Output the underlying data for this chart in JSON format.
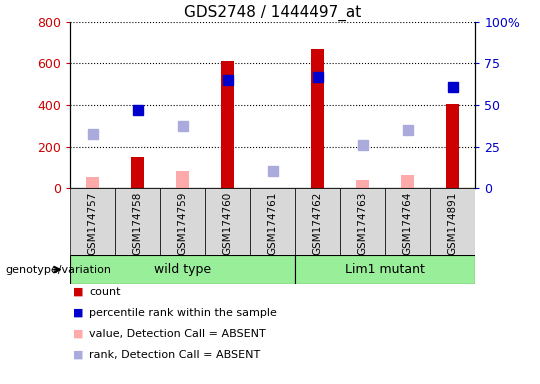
{
  "title": "GDS2748 / 1444497_at",
  "samples": [
    "GSM174757",
    "GSM174758",
    "GSM174759",
    "GSM174760",
    "GSM174761",
    "GSM174762",
    "GSM174763",
    "GSM174764",
    "GSM174891"
  ],
  "count_values": [
    null,
    150,
    null,
    610,
    null,
    670,
    null,
    null,
    405
  ],
  "count_absent_values": [
    55,
    null,
    80,
    null,
    null,
    null,
    38,
    65,
    null
  ],
  "percentile_values": [
    null,
    375,
    null,
    520,
    null,
    535,
    null,
    null,
    485
  ],
  "percentile_absent_values": [
    260,
    null,
    300,
    null,
    80,
    null,
    205,
    280,
    null
  ],
  "ylim_left": [
    0,
    800
  ],
  "ylim_right": [
    0,
    100
  ],
  "yticks_left": [
    0,
    200,
    400,
    600,
    800
  ],
  "yticks_right": [
    0,
    25,
    50,
    75,
    100
  ],
  "ytick_labels_right": [
    "0",
    "25",
    "50",
    "75",
    "100%"
  ],
  "count_color": "#cc0000",
  "count_absent_color": "#ffaaaa",
  "percentile_color": "#0000cc",
  "percentile_absent_color": "#aaaadd",
  "bg_color": "#d8d8d8",
  "green_color": "#99ee99",
  "bar_width": 0.3,
  "wild_type_label": "wild type",
  "lim1_mutant_label": "Lim1 mutant",
  "genotype_label": "genotype/variation",
  "legend_items": [
    {
      "label": "count",
      "color": "#cc0000"
    },
    {
      "label": "percentile rank within the sample",
      "color": "#0000cc"
    },
    {
      "label": "value, Detection Call = ABSENT",
      "color": "#ffaaaa"
    },
    {
      "label": "rank, Detection Call = ABSENT",
      "color": "#aaaadd"
    }
  ]
}
